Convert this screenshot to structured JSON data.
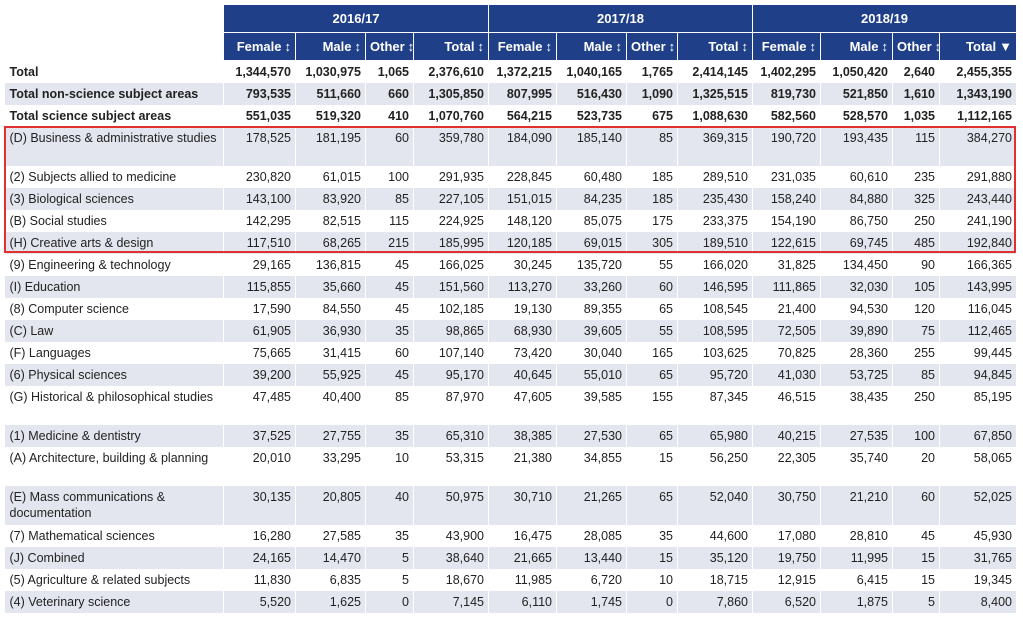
{
  "years": [
    "2016/17",
    "2017/18",
    "2018/19"
  ],
  "columns": [
    "Female",
    "Male",
    "Other",
    "Total"
  ],
  "sort_icon": "↕",
  "sorted_icon": "▼",
  "rows": [
    {
      "label": "Total",
      "v": [
        "1,344,570",
        "1,030,975",
        "1,065",
        "2,376,610",
        "1,372,215",
        "1,040,165",
        "1,765",
        "2,414,145",
        "1,402,295",
        "1,050,420",
        "2,640",
        "2,455,355"
      ]
    },
    {
      "label": "Total non-science subject areas",
      "v": [
        "793,535",
        "511,660",
        "660",
        "1,305,850",
        "807,995",
        "516,430",
        "1,090",
        "1,325,515",
        "819,730",
        "521,850",
        "1,610",
        "1,343,190"
      ]
    },
    {
      "label": "Total science subject areas",
      "v": [
        "551,035",
        "519,320",
        "410",
        "1,070,760",
        "564,215",
        "523,735",
        "675",
        "1,088,630",
        "582,560",
        "528,570",
        "1,035",
        "1,112,165"
      ]
    },
    {
      "label": "(D) Business & administrative studies",
      "v": [
        "178,525",
        "181,195",
        "60",
        "359,780",
        "184,090",
        "185,140",
        "85",
        "369,315",
        "190,720",
        "193,435",
        "115",
        "384,270"
      ]
    },
    {
      "label": "(2) Subjects allied to medicine",
      "v": [
        "230,820",
        "61,015",
        "100",
        "291,935",
        "228,845",
        "60,480",
        "185",
        "289,510",
        "231,035",
        "60,610",
        "235",
        "291,880"
      ]
    },
    {
      "label": "(3) Biological sciences",
      "v": [
        "143,100",
        "83,920",
        "85",
        "227,105",
        "151,015",
        "84,235",
        "185",
        "235,430",
        "158,240",
        "84,880",
        "325",
        "243,440"
      ]
    },
    {
      "label": "(B) Social studies",
      "v": [
        "142,295",
        "82,515",
        "115",
        "224,925",
        "148,120",
        "85,075",
        "175",
        "233,375",
        "154,190",
        "86,750",
        "250",
        "241,190"
      ]
    },
    {
      "label": "(H) Creative arts & design",
      "v": [
        "117,510",
        "68,265",
        "215",
        "185,995",
        "120,185",
        "69,015",
        "305",
        "189,510",
        "122,615",
        "69,745",
        "485",
        "192,840"
      ]
    },
    {
      "label": "(9) Engineering & technology",
      "v": [
        "29,165",
        "136,815",
        "45",
        "166,025",
        "30,245",
        "135,720",
        "55",
        "166,020",
        "31,825",
        "134,450",
        "90",
        "166,365"
      ]
    },
    {
      "label": "(I) Education",
      "v": [
        "115,855",
        "35,660",
        "45",
        "151,560",
        "113,270",
        "33,260",
        "60",
        "146,595",
        "111,865",
        "32,030",
        "105",
        "143,995"
      ]
    },
    {
      "label": "(8) Computer science",
      "v": [
        "17,590",
        "84,550",
        "45",
        "102,185",
        "19,130",
        "89,355",
        "65",
        "108,545",
        "21,400",
        "94,530",
        "120",
        "116,045"
      ]
    },
    {
      "label": "(C) Law",
      "v": [
        "61,905",
        "36,930",
        "35",
        "98,865",
        "68,930",
        "39,605",
        "55",
        "108,595",
        "72,505",
        "39,890",
        "75",
        "112,465"
      ]
    },
    {
      "label": "(F) Languages",
      "v": [
        "75,665",
        "31,415",
        "60",
        "107,140",
        "73,420",
        "30,040",
        "165",
        "103,625",
        "70,825",
        "28,360",
        "255",
        "99,445"
      ]
    },
    {
      "label": "(6) Physical sciences",
      "v": [
        "39,200",
        "55,925",
        "45",
        "95,170",
        "40,645",
        "55,010",
        "65",
        "95,720",
        "41,030",
        "53,725",
        "85",
        "94,845"
      ]
    },
    {
      "label": "(G) Historical & philosophical studies",
      "v": [
        "47,485",
        "40,400",
        "85",
        "87,970",
        "47,605",
        "39,585",
        "155",
        "87,345",
        "46,515",
        "38,435",
        "250",
        "85,195"
      ]
    },
    {
      "label": "(1) Medicine & dentistry",
      "v": [
        "37,525",
        "27,755",
        "35",
        "65,310",
        "38,385",
        "27,530",
        "65",
        "65,980",
        "40,215",
        "27,535",
        "100",
        "67,850"
      ]
    },
    {
      "label": "(A) Architecture, building & planning",
      "v": [
        "20,010",
        "33,295",
        "10",
        "53,315",
        "21,380",
        "34,855",
        "15",
        "56,250",
        "22,305",
        "35,740",
        "20",
        "58,065"
      ]
    },
    {
      "label": "(E) Mass communications & documentation",
      "v": [
        "30,135",
        "20,805",
        "40",
        "50,975",
        "30,710",
        "21,265",
        "65",
        "52,040",
        "30,750",
        "21,210",
        "60",
        "52,025"
      ]
    },
    {
      "label": "(7) Mathematical sciences",
      "v": [
        "16,280",
        "27,585",
        "35",
        "43,900",
        "16,475",
        "28,085",
        "35",
        "44,600",
        "17,080",
        "28,810",
        "45",
        "45,930"
      ]
    },
    {
      "label": "(J) Combined",
      "v": [
        "24,165",
        "14,470",
        "5",
        "38,640",
        "21,665",
        "13,440",
        "15",
        "35,120",
        "19,750",
        "11,995",
        "15",
        "31,765"
      ]
    },
    {
      "label": "(5) Agriculture & related subjects",
      "v": [
        "11,830",
        "6,835",
        "5",
        "18,670",
        "11,985",
        "6,720",
        "10",
        "18,715",
        "12,915",
        "6,415",
        "15",
        "19,345"
      ]
    },
    {
      "label": "(4) Veterinary science",
      "v": [
        "5,520",
        "1,625",
        "0",
        "7,145",
        "6,110",
        "1,745",
        "0",
        "7,860",
        "6,520",
        "1,875",
        "5",
        "8,400"
      ]
    }
  ]
}
